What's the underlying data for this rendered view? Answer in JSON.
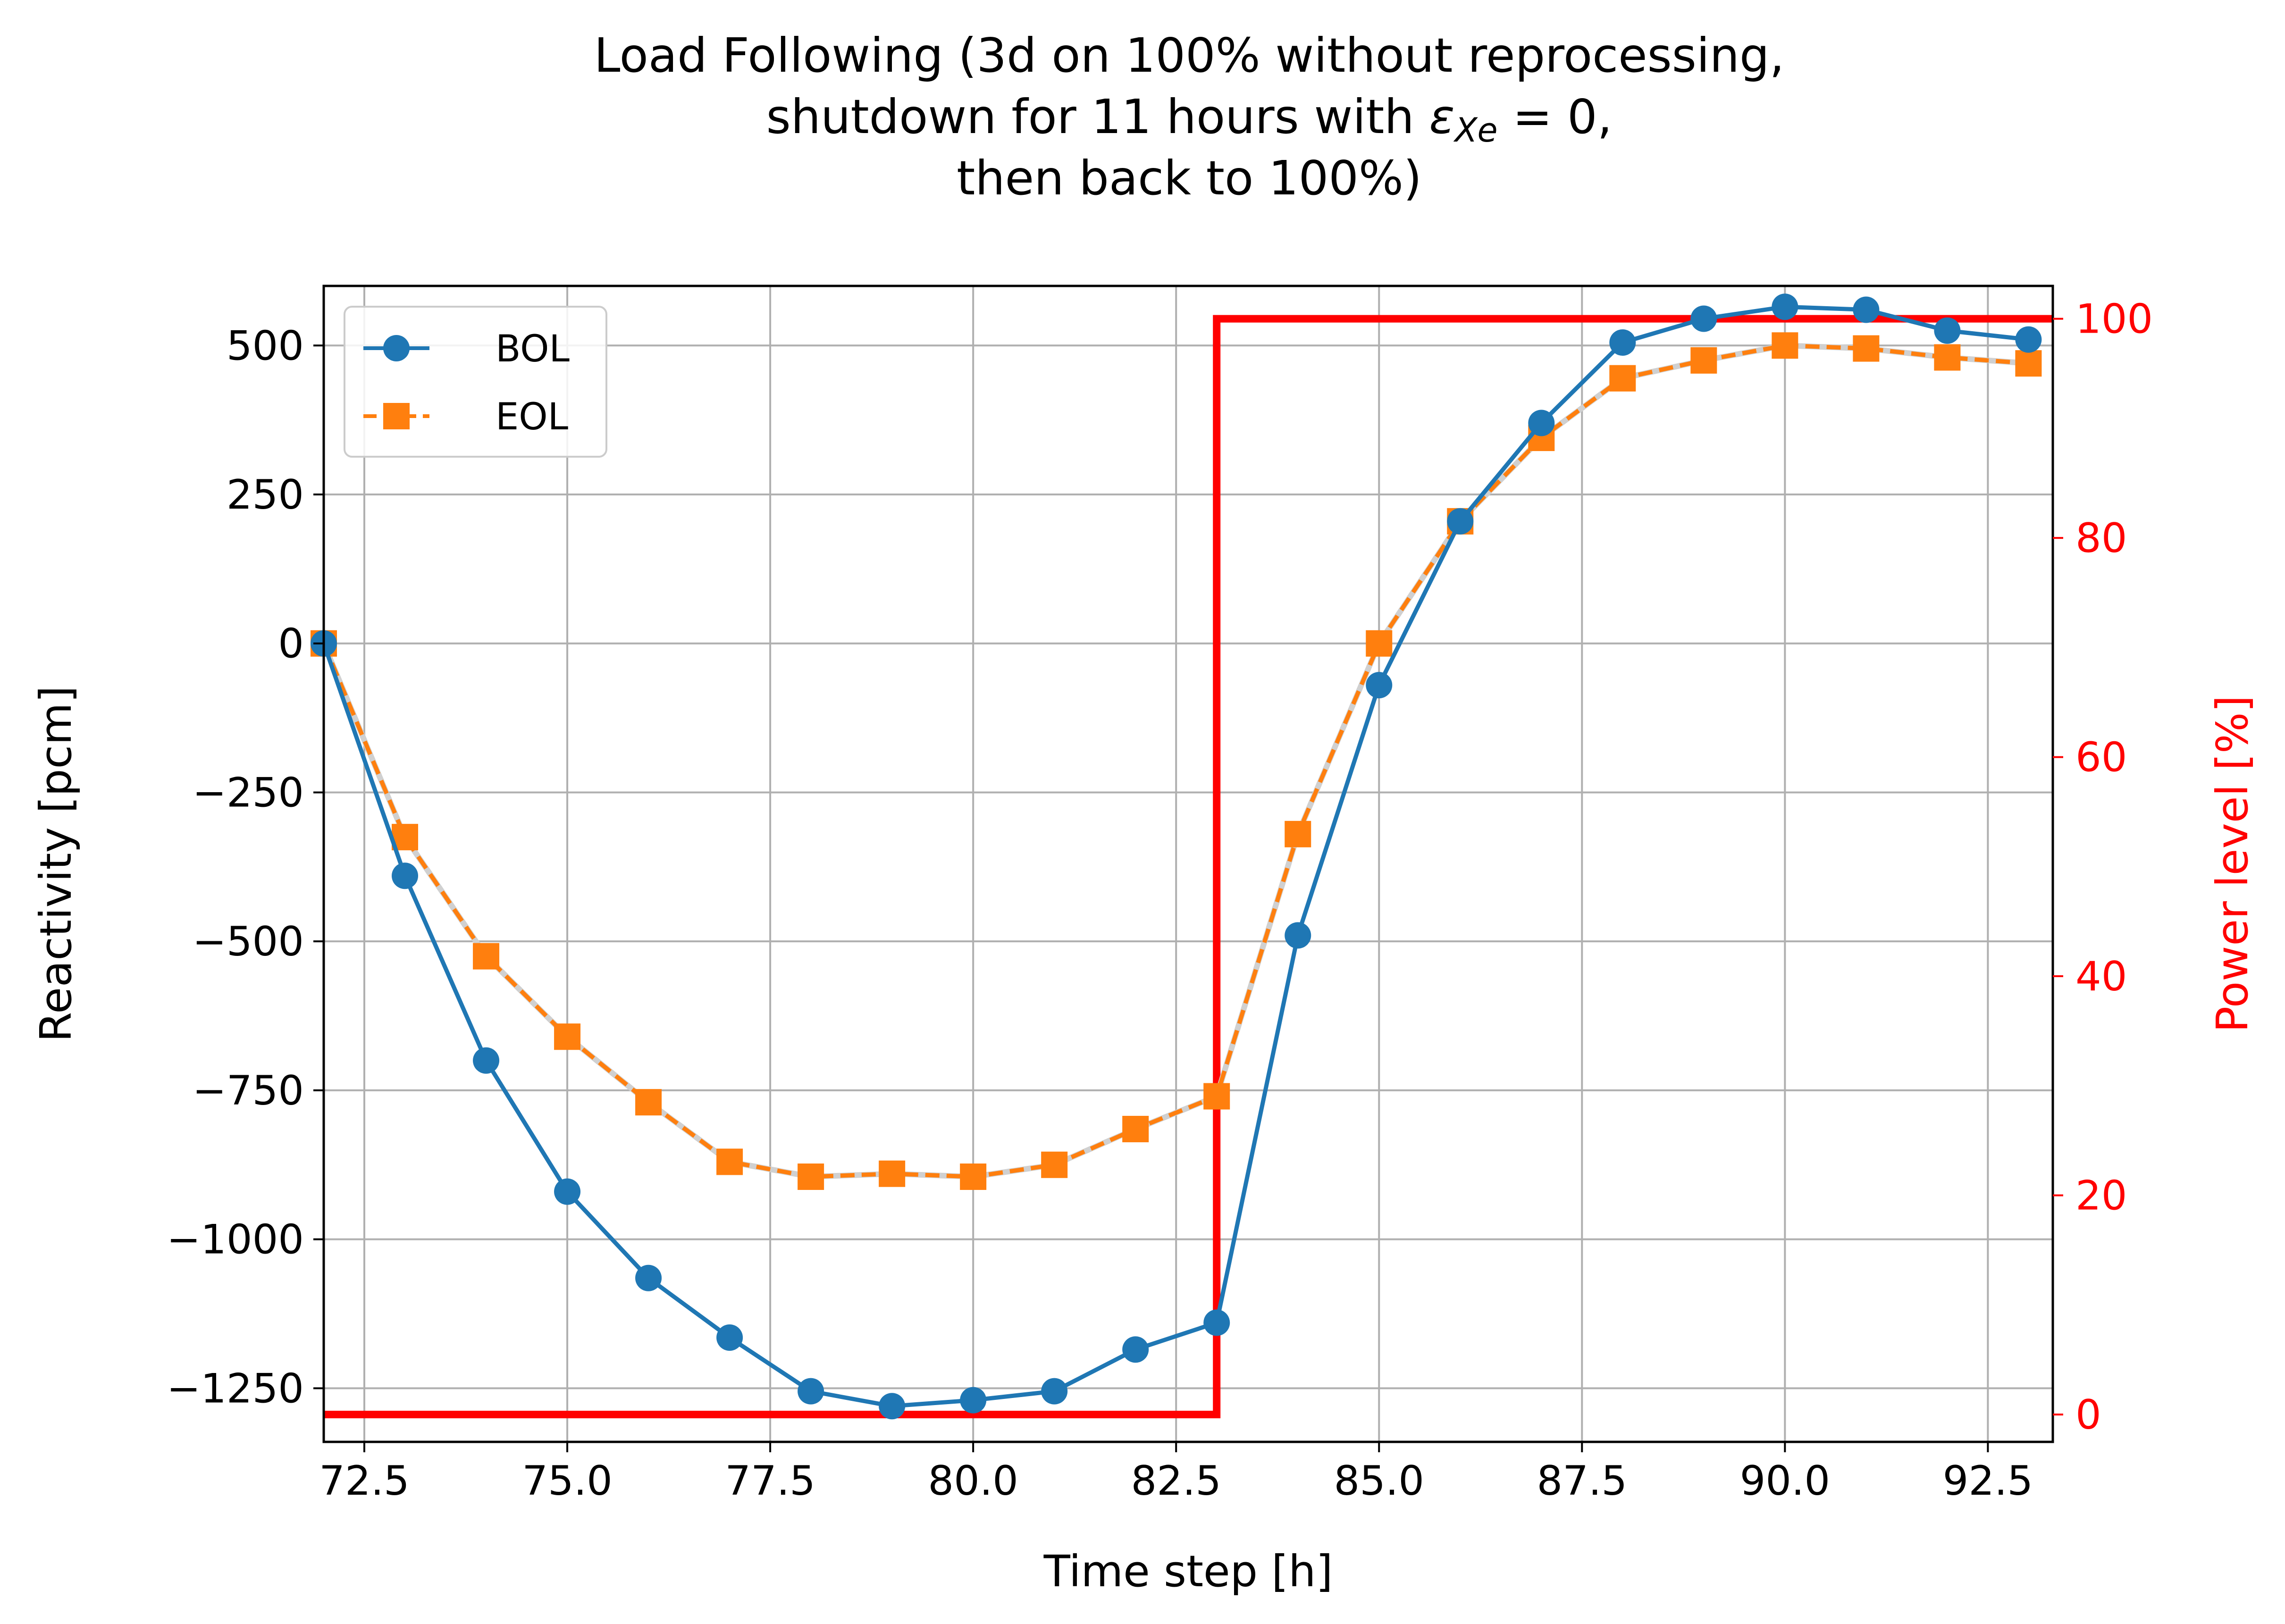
{
  "chart_data": {
    "type": "line",
    "title_lines": [
      "Load Following (3d on 100% without reprocessing,",
      "shutdown for 11 hours with ",
      "then back to 100%)"
    ],
    "title_math": "ε",
    "title_math_sub": "Xe",
    "title_math_tail": " = 0,",
    "xlabel": "Time step [h]",
    "ylabel": "Reactivity [pcm]",
    "y2label": "Power level [%]",
    "xlim": [
      72,
      93.3
    ],
    "ylim": [
      -1340,
      600
    ],
    "y2lim": [
      -2.5,
      103
    ],
    "x_ticks": [
      72.5,
      75.0,
      77.5,
      80.0,
      82.5,
      85.0,
      87.5,
      90.0,
      92.5
    ],
    "x_tick_labels": [
      "72.5",
      "75.0",
      "77.5",
      "80.0",
      "82.5",
      "85.0",
      "87.5",
      "90.0",
      "92.5"
    ],
    "y_ticks": [
      500,
      250,
      0,
      -250,
      -500,
      -750,
      -1000,
      -1250
    ],
    "y_tick_labels": [
      "500",
      "250",
      "0",
      "−250",
      "−500",
      "−750",
      "−1000",
      "−1250"
    ],
    "y2_ticks": [
      100,
      80,
      60,
      40,
      20,
      0
    ],
    "y2_tick_labels": [
      "100",
      "80",
      "60",
      "40",
      "20",
      "0"
    ],
    "grid": true,
    "legend_position": "top-left",
    "x": [
      72,
      73,
      74,
      75,
      76,
      77,
      78,
      79,
      80,
      81,
      82,
      83,
      84,
      85,
      86,
      87,
      88,
      89,
      90,
      91,
      92,
      93
    ],
    "series": [
      {
        "name": "BOL",
        "color": "#1f77b4",
        "marker": "circle",
        "linestyle": "solid",
        "values": [
          0,
          -390,
          -700,
          -920,
          -1065,
          -1165,
          -1255,
          -1280,
          -1270,
          -1255,
          -1185,
          -1140,
          -490,
          -70,
          205,
          370,
          505,
          545,
          565,
          560,
          525,
          510
        ]
      },
      {
        "name": "EOL",
        "color": "#ff7f0e",
        "marker": "square",
        "linestyle": "dashed",
        "values": [
          0,
          -325,
          -525,
          -660,
          -770,
          -870,
          -895,
          -890,
          -895,
          -875,
          -815,
          -760,
          -320,
          0,
          205,
          345,
          445,
          475,
          500,
          495,
          480,
          470
        ]
      }
    ],
    "power_series": {
      "name": "Power level",
      "color": "#ff0000",
      "axis": "right",
      "step_x": [
        72,
        83,
        83,
        93.3
      ],
      "step_y": [
        0,
        0,
        100,
        100
      ]
    }
  }
}
